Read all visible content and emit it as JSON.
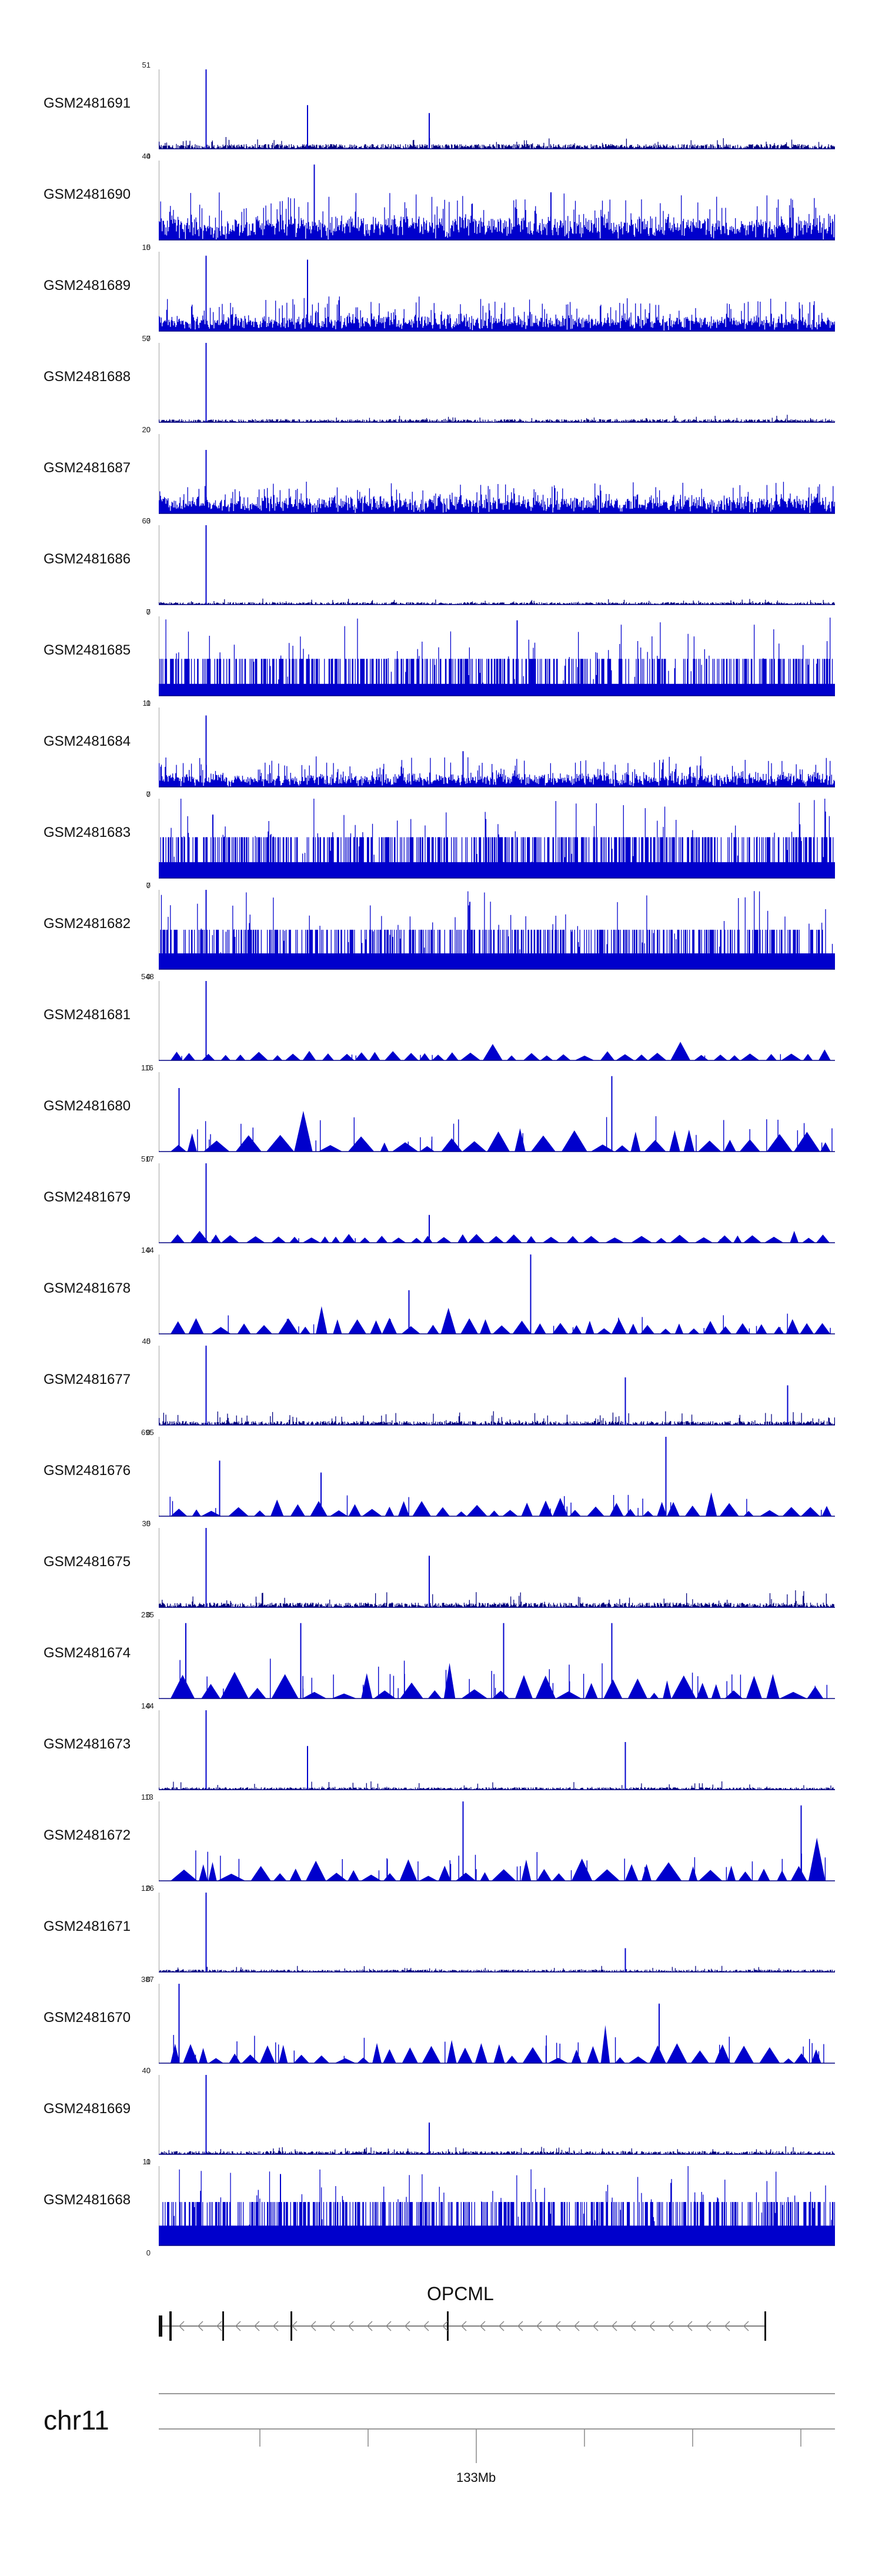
{
  "figure": {
    "title": "",
    "track_color": "#0000cc",
    "outline_color": "#000080"
  },
  "chart_data": {
    "type": "area",
    "title": "",
    "xlabel": "chr11",
    "ylabel": "",
    "series": [
      {
        "name": "GSM2481691",
        "ymax": "51",
        "ymin": "0",
        "style": "spiky",
        "baseline": 0.06,
        "noise": 0.1,
        "peaks": [
          [
            0.07,
            1.0
          ],
          [
            0.22,
            0.55
          ],
          [
            0.4,
            0.45
          ]
        ]
      },
      {
        "name": "GSM2481690",
        "ymax": "44",
        "ymin": "0",
        "style": "dense",
        "baseline": 0.2,
        "noise": 0.45,
        "peaks": [
          [
            0.23,
            0.95
          ],
          [
            0.58,
            0.6
          ]
        ]
      },
      {
        "name": "GSM2481689",
        "ymax": "15",
        "ymin": "0",
        "style": "dense",
        "baseline": 0.12,
        "noise": 0.35,
        "peaks": [
          [
            0.07,
            0.95
          ],
          [
            0.22,
            0.9
          ]
        ]
      },
      {
        "name": "GSM2481688",
        "ymax": "57",
        "ymin": "0",
        "style": "spiky",
        "baseline": 0.04,
        "noise": 0.06,
        "peaks": [
          [
            0.07,
            1.0
          ]
        ]
      },
      {
        "name": "GSM2481687",
        "ymax": "20",
        "ymin": "0",
        "style": "dense",
        "baseline": 0.15,
        "noise": 0.3,
        "peaks": [
          [
            0.07,
            0.8
          ]
        ]
      },
      {
        "name": "GSM2481686",
        "ymax": "63",
        "ymin": "0",
        "style": "spiky",
        "baseline": 0.03,
        "noise": 0.05,
        "peaks": [
          [
            0.07,
            1.0
          ]
        ]
      },
      {
        "name": "GSM2481685",
        "ymax": "7",
        "ymin": "0",
        "style": "step",
        "baseline": 0.15,
        "noise": 0.9,
        "peaks": [
          [
            0.53,
            0.95
          ]
        ]
      },
      {
        "name": "GSM2481684",
        "ymax": "11",
        "ymin": "0",
        "style": "dense",
        "baseline": 0.1,
        "noise": 0.3,
        "peaks": [
          [
            0.07,
            0.9
          ],
          [
            0.45,
            0.45
          ]
        ]
      },
      {
        "name": "GSM2481683",
        "ymax": "7",
        "ymin": "0",
        "style": "step",
        "baseline": 0.2,
        "noise": 0.9,
        "peaks": [
          [
            0.08,
            0.8
          ]
        ]
      },
      {
        "name": "GSM2481682",
        "ymax": "7",
        "ymin": "0",
        "style": "step",
        "baseline": 0.2,
        "noise": 0.85,
        "peaks": [
          [
            0.07,
            1.0
          ],
          [
            0.46,
            0.85
          ]
        ]
      },
      {
        "name": "GSM2481681",
        "ymax": "548",
        "ymin": "0",
        "style": "triangle",
        "baseline": 0.0,
        "noise": 0.12,
        "peaks": [
          [
            0.07,
            1.0
          ]
        ]
      },
      {
        "name": "GSM2481680",
        "ymax": "116",
        "ymin": "0",
        "style": "triangle",
        "baseline": 0.0,
        "noise": 0.5,
        "peaks": [
          [
            0.67,
            0.95
          ],
          [
            0.03,
            0.8
          ]
        ]
      },
      {
        "name": "GSM2481679",
        "ymax": "517",
        "ymin": "0",
        "style": "triangle",
        "baseline": 0.0,
        "noise": 0.1,
        "peaks": [
          [
            0.07,
            1.0
          ],
          [
            0.4,
            0.35
          ]
        ]
      },
      {
        "name": "GSM2481678",
        "ymax": "144",
        "ymin": "0",
        "style": "triangle",
        "baseline": 0.0,
        "noise": 0.3,
        "peaks": [
          [
            0.55,
            1.0
          ],
          [
            0.37,
            0.55
          ]
        ]
      },
      {
        "name": "GSM2481677",
        "ymax": "45",
        "ymin": "0",
        "style": "spiky",
        "baseline": 0.05,
        "noise": 0.15,
        "peaks": [
          [
            0.07,
            1.0
          ],
          [
            0.69,
            0.6
          ],
          [
            0.93,
            0.5
          ]
        ]
      },
      {
        "name": "GSM2481676",
        "ymax": "695",
        "ymin": "0",
        "style": "triangle",
        "baseline": 0.0,
        "noise": 0.3,
        "peaks": [
          [
            0.75,
            1.0
          ],
          [
            0.09,
            0.7
          ],
          [
            0.24,
            0.55
          ]
        ]
      },
      {
        "name": "GSM2481675",
        "ymax": "35",
        "ymin": "0",
        "style": "spiky",
        "baseline": 0.06,
        "noise": 0.18,
        "peaks": [
          [
            0.07,
            1.0
          ],
          [
            0.4,
            0.65
          ]
        ]
      },
      {
        "name": "GSM2481674",
        "ymax": "235",
        "ymin": "0",
        "style": "triangle",
        "baseline": 0.0,
        "noise": 0.6,
        "peaks": [
          [
            0.04,
            0.95
          ],
          [
            0.21,
            0.95
          ],
          [
            0.51,
            0.95
          ],
          [
            0.67,
            0.95
          ]
        ]
      },
      {
        "name": "GSM2481673",
        "ymax": "144",
        "ymin": "0",
        "style": "spiky",
        "baseline": 0.03,
        "noise": 0.08,
        "peaks": [
          [
            0.07,
            1.0
          ],
          [
            0.22,
            0.55
          ],
          [
            0.69,
            0.6
          ]
        ]
      },
      {
        "name": "GSM2481672",
        "ymax": "113",
        "ymin": "0",
        "style": "triangle",
        "baseline": 0.0,
        "noise": 0.45,
        "peaks": [
          [
            0.45,
            1.0
          ],
          [
            0.95,
            0.95
          ]
        ]
      },
      {
        "name": "GSM2481671",
        "ymax": "126",
        "ymin": "0",
        "style": "spiky",
        "baseline": 0.03,
        "noise": 0.06,
        "peaks": [
          [
            0.07,
            1.0
          ],
          [
            0.69,
            0.3
          ]
        ]
      },
      {
        "name": "GSM2481670",
        "ymax": "387",
        "ymin": "0",
        "style": "triangle",
        "baseline": 0.0,
        "noise": 0.4,
        "peaks": [
          [
            0.03,
            1.0
          ],
          [
            0.74,
            0.75
          ]
        ]
      },
      {
        "name": "GSM2481669",
        "ymax": "40",
        "ymin": "0",
        "style": "spiky",
        "baseline": 0.04,
        "noise": 0.07,
        "peaks": [
          [
            0.07,
            1.0
          ],
          [
            0.4,
            0.4
          ]
        ]
      },
      {
        "name": "GSM2481668",
        "ymax": "11",
        "ymin": "0",
        "style": "step",
        "baseline": 0.25,
        "noise": 0.85,
        "peaks": [
          [
            0.18,
            0.9
          ]
        ]
      }
    ]
  },
  "gene": {
    "name": "OPCML",
    "strand": "-"
  },
  "chromosome": {
    "name": "chr11",
    "tick_label": "133Mb"
  }
}
